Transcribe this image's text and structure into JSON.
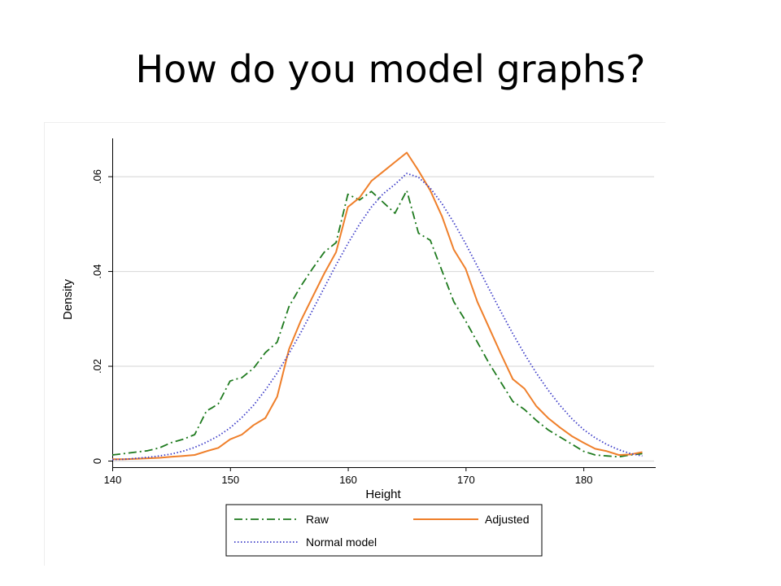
{
  "slide": {
    "title": "How do you model graphs?"
  },
  "chart_data": {
    "type": "line",
    "title": "",
    "xlabel": "Height",
    "ylabel": "Density",
    "xlim": [
      140,
      186
    ],
    "ylim": [
      0,
      0.068
    ],
    "xticks": [
      140,
      150,
      160,
      170,
      180
    ],
    "xtick_labels": [
      "140",
      "150",
      "160",
      "170",
      "180"
    ],
    "yticks": [
      0,
      0.02,
      0.04,
      0.06
    ],
    "ytick_labels": [
      "0",
      ".02",
      ".04",
      ".06"
    ],
    "grid": true,
    "legend": "bottom",
    "series": [
      {
        "name": "Raw",
        "color": "#1e7a1e",
        "style": "dash-dot",
        "x": [
          140,
          141,
          142,
          143,
          144,
          145,
          146,
          147,
          148,
          148.5,
          149,
          150,
          150.5,
          151,
          152,
          153,
          154,
          155,
          156,
          157,
          158,
          159,
          160,
          161,
          162,
          163,
          164,
          165,
          166,
          167,
          168,
          169,
          170,
          171,
          172,
          173,
          174,
          175,
          176,
          177,
          178,
          179,
          180,
          181,
          182,
          183,
          184,
          185
        ],
        "values": [
          0.0012,
          0.0015,
          0.0018,
          0.0021,
          0.0027,
          0.0038,
          0.0045,
          0.0055,
          0.0105,
          0.0112,
          0.012,
          0.0168,
          0.0172,
          0.0175,
          0.0195,
          0.0228,
          0.025,
          0.0325,
          0.0368,
          0.0405,
          0.044,
          0.046,
          0.0562,
          0.055,
          0.0568,
          0.0545,
          0.0522,
          0.057,
          0.048,
          0.0465,
          0.04,
          0.0335,
          0.0295,
          0.025,
          0.0205,
          0.0165,
          0.0125,
          0.0108,
          0.0085,
          0.0065,
          0.005,
          0.0035,
          0.002,
          0.0012,
          0.001,
          0.0008,
          0.0012,
          0.0015
        ]
      },
      {
        "name": "Adjusted",
        "color": "#ef7f2a",
        "style": "solid",
        "x": [
          140,
          141,
          142,
          143,
          144,
          145,
          146,
          147,
          148,
          149,
          150,
          151,
          152,
          153,
          154,
          155,
          156,
          157,
          158,
          159,
          160,
          161,
          162,
          163,
          164,
          165,
          166,
          167,
          168,
          169,
          170,
          171,
          172,
          173,
          174,
          175,
          176,
          177,
          178,
          179,
          180,
          181,
          182,
          183,
          184,
          185
        ],
        "values": [
          0.0003,
          0.0003,
          0.0004,
          0.0005,
          0.0006,
          0.0008,
          0.001,
          0.0012,
          0.002,
          0.0027,
          0.0045,
          0.0055,
          0.0075,
          0.009,
          0.0135,
          0.0235,
          0.0295,
          0.0345,
          0.0395,
          0.044,
          0.0535,
          0.0555,
          0.059,
          0.061,
          0.063,
          0.065,
          0.0612,
          0.057,
          0.0515,
          0.0445,
          0.0405,
          0.0335,
          0.028,
          0.0225,
          0.0172,
          0.0152,
          0.0115,
          0.009,
          0.007,
          0.0052,
          0.0038,
          0.0025,
          0.002,
          0.0012,
          0.0013,
          0.0018
        ]
      },
      {
        "name": "Normal model",
        "color": "#3d3dc8",
        "style": "dotted",
        "x": [
          140,
          141,
          142,
          143,
          144,
          145,
          146,
          147,
          148,
          149,
          150,
          151,
          152,
          153,
          154,
          155,
          156,
          157,
          158,
          159,
          160,
          161,
          162,
          163,
          164,
          165,
          166,
          167,
          168,
          169,
          170,
          171,
          172,
          173,
          174,
          175,
          176,
          177,
          178,
          179,
          180,
          181,
          182,
          183,
          184,
          185
        ],
        "values": [
          0.0002,
          0.0003,
          0.0005,
          0.0007,
          0.001,
          0.0014,
          0.002,
          0.0028,
          0.0039,
          0.0052,
          0.0069,
          0.0091,
          0.0117,
          0.0149,
          0.0185,
          0.0226,
          0.027,
          0.0317,
          0.0365,
          0.0413,
          0.0458,
          0.0499,
          0.0535,
          0.0563,
          0.0583,
          0.0606,
          0.0598,
          0.0575,
          0.0542,
          0.0502,
          0.0458,
          0.041,
          0.0362,
          0.0314,
          0.0268,
          0.0225,
          0.0185,
          0.0149,
          0.0117,
          0.0089,
          0.0066,
          0.0048,
          0.0034,
          0.0023,
          0.0015,
          0.001
        ]
      }
    ]
  }
}
